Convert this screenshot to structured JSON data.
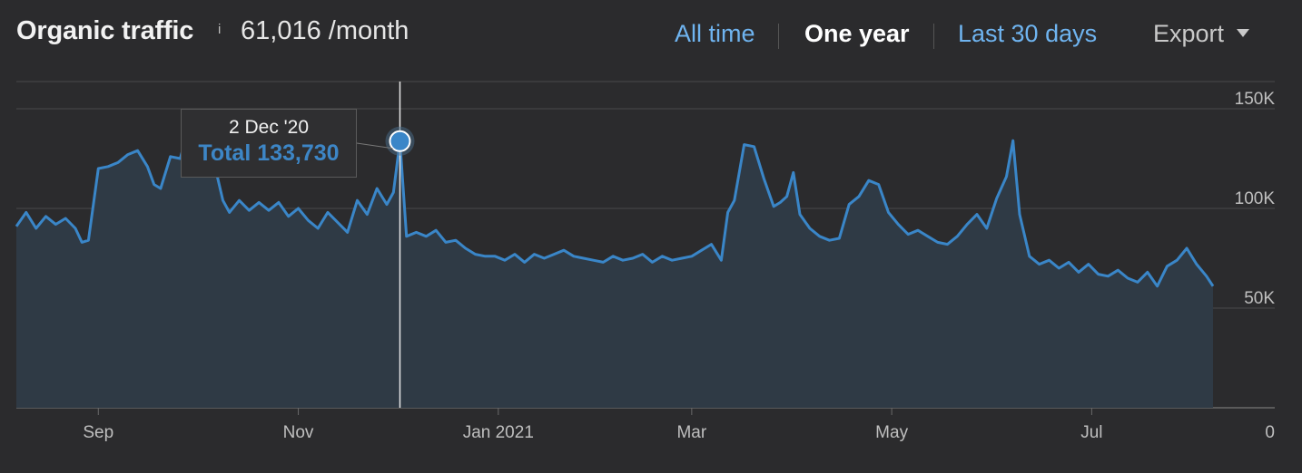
{
  "header": {
    "title": "Organic traffic",
    "info_icon": "i",
    "metric": "61,016 /month",
    "periods": [
      {
        "label": "All time",
        "active": false
      },
      {
        "label": "One year",
        "active": true
      },
      {
        "label": "Last 30 days",
        "active": false
      }
    ],
    "export_label": "Export"
  },
  "tooltip": {
    "date": "2 Dec '20",
    "value": "Total 133,730"
  },
  "colors": {
    "line": "#3a86c8",
    "area": "#2f3a45",
    "background": "#2b2b2d",
    "grid": "#4a4a4a",
    "link": "#6fb4f0"
  },
  "chart_data": {
    "type": "area",
    "title": "Organic traffic",
    "ylim": [
      0,
      150000
    ],
    "yticks": [
      {
        "value": 150000,
        "label": "150K"
      },
      {
        "value": 100000,
        "label": "100K"
      },
      {
        "value": 50000,
        "label": "50K"
      },
      {
        "value": 0,
        "label": "0"
      }
    ],
    "xticks": [
      {
        "date": "2020-09-01",
        "label": "Sep"
      },
      {
        "date": "2020-11-01",
        "label": "Nov"
      },
      {
        "date": "2021-01-01",
        "label": "Jan 2021"
      },
      {
        "date": "2021-03-01",
        "label": "Mar"
      },
      {
        "date": "2021-05-01",
        "label": "May"
      },
      {
        "date": "2021-07-01",
        "label": "Jul"
      }
    ],
    "x_range": [
      "2020-08-07",
      "2021-08-07"
    ],
    "highlight": {
      "date": "2020-12-02",
      "value": 133730
    },
    "series": [
      {
        "points": [
          [
            "2020-08-07",
            91000
          ],
          [
            "2020-08-10",
            98000
          ],
          [
            "2020-08-13",
            90000
          ],
          [
            "2020-08-16",
            96000
          ],
          [
            "2020-08-19",
            92000
          ],
          [
            "2020-08-22",
            95000
          ],
          [
            "2020-08-25",
            90000
          ],
          [
            "2020-08-27",
            83000
          ],
          [
            "2020-08-29",
            84000
          ],
          [
            "2020-09-01",
            120000
          ],
          [
            "2020-09-04",
            121000
          ],
          [
            "2020-09-07",
            123000
          ],
          [
            "2020-09-10",
            127000
          ],
          [
            "2020-09-13",
            129000
          ],
          [
            "2020-09-16",
            121000
          ],
          [
            "2020-09-18",
            112000
          ],
          [
            "2020-09-20",
            110000
          ],
          [
            "2020-09-23",
            126000
          ],
          [
            "2020-09-26",
            125000
          ],
          [
            "2020-09-29",
            143000
          ],
          [
            "2020-10-02",
            138000
          ],
          [
            "2020-10-05",
            122000
          ],
          [
            "2020-10-07",
            118000
          ],
          [
            "2020-10-09",
            104000
          ],
          [
            "2020-10-11",
            98000
          ],
          [
            "2020-10-14",
            104000
          ],
          [
            "2020-10-17",
            99000
          ],
          [
            "2020-10-20",
            103000
          ],
          [
            "2020-10-23",
            99000
          ],
          [
            "2020-10-26",
            103000
          ],
          [
            "2020-10-29",
            96000
          ],
          [
            "2020-11-01",
            100000
          ],
          [
            "2020-11-04",
            94000
          ],
          [
            "2020-11-07",
            90000
          ],
          [
            "2020-11-10",
            98000
          ],
          [
            "2020-11-13",
            93000
          ],
          [
            "2020-11-16",
            88000
          ],
          [
            "2020-11-19",
            104000
          ],
          [
            "2020-11-22",
            97000
          ],
          [
            "2020-11-25",
            110000
          ],
          [
            "2020-11-28",
            102000
          ],
          [
            "2020-11-30",
            108000
          ],
          [
            "2020-12-02",
            133730
          ],
          [
            "2020-12-04",
            86000
          ],
          [
            "2020-12-07",
            88000
          ],
          [
            "2020-12-10",
            86000
          ],
          [
            "2020-12-13",
            89000
          ],
          [
            "2020-12-16",
            83000
          ],
          [
            "2020-12-19",
            84000
          ],
          [
            "2020-12-22",
            80000
          ],
          [
            "2020-12-25",
            77000
          ],
          [
            "2020-12-28",
            76000
          ],
          [
            "2020-12-31",
            76000
          ],
          [
            "2021-01-03",
            74000
          ],
          [
            "2021-01-06",
            77000
          ],
          [
            "2021-01-09",
            73000
          ],
          [
            "2021-01-12",
            77000
          ],
          [
            "2021-01-15",
            75000
          ],
          [
            "2021-01-18",
            77000
          ],
          [
            "2021-01-21",
            79000
          ],
          [
            "2021-01-24",
            76000
          ],
          [
            "2021-01-27",
            75000
          ],
          [
            "2021-01-30",
            74000
          ],
          [
            "2021-02-02",
            73000
          ],
          [
            "2021-02-05",
            76000
          ],
          [
            "2021-02-08",
            74000
          ],
          [
            "2021-02-11",
            75000
          ],
          [
            "2021-02-14",
            77000
          ],
          [
            "2021-02-17",
            73000
          ],
          [
            "2021-02-20",
            76000
          ],
          [
            "2021-02-23",
            74000
          ],
          [
            "2021-02-26",
            75000
          ],
          [
            "2021-03-01",
            76000
          ],
          [
            "2021-03-04",
            79000
          ],
          [
            "2021-03-07",
            82000
          ],
          [
            "2021-03-10",
            74000
          ],
          [
            "2021-03-12",
            98000
          ],
          [
            "2021-03-14",
            104000
          ],
          [
            "2021-03-17",
            132000
          ],
          [
            "2021-03-20",
            131000
          ],
          [
            "2021-03-23",
            115000
          ],
          [
            "2021-03-26",
            101000
          ],
          [
            "2021-03-28",
            103000
          ],
          [
            "2021-03-30",
            106000
          ],
          [
            "2021-04-01",
            118000
          ],
          [
            "2021-04-03",
            97000
          ],
          [
            "2021-04-06",
            90000
          ],
          [
            "2021-04-09",
            86000
          ],
          [
            "2021-04-12",
            84000
          ],
          [
            "2021-04-15",
            85000
          ],
          [
            "2021-04-18",
            102000
          ],
          [
            "2021-04-21",
            106000
          ],
          [
            "2021-04-24",
            114000
          ],
          [
            "2021-04-27",
            112000
          ],
          [
            "2021-04-30",
            98000
          ],
          [
            "2021-05-03",
            92000
          ],
          [
            "2021-05-06",
            87000
          ],
          [
            "2021-05-09",
            89000
          ],
          [
            "2021-05-12",
            86000
          ],
          [
            "2021-05-15",
            83000
          ],
          [
            "2021-05-18",
            82000
          ],
          [
            "2021-05-21",
            86000
          ],
          [
            "2021-05-24",
            92000
          ],
          [
            "2021-05-27",
            97000
          ],
          [
            "2021-05-30",
            90000
          ],
          [
            "2021-06-02",
            105000
          ],
          [
            "2021-06-05",
            116000
          ],
          [
            "2021-06-07",
            134000
          ],
          [
            "2021-06-09",
            97000
          ],
          [
            "2021-06-12",
            76000
          ],
          [
            "2021-06-15",
            72000
          ],
          [
            "2021-06-18",
            74000
          ],
          [
            "2021-06-21",
            70000
          ],
          [
            "2021-06-24",
            73000
          ],
          [
            "2021-06-27",
            68000
          ],
          [
            "2021-06-30",
            72000
          ],
          [
            "2021-07-03",
            67000
          ],
          [
            "2021-07-06",
            66000
          ],
          [
            "2021-07-09",
            69000
          ],
          [
            "2021-07-12",
            65000
          ],
          [
            "2021-07-15",
            63000
          ],
          [
            "2021-07-18",
            68000
          ],
          [
            "2021-07-21",
            61000
          ],
          [
            "2021-07-24",
            71000
          ],
          [
            "2021-07-27",
            74000
          ],
          [
            "2021-07-30",
            80000
          ],
          [
            "2021-08-02",
            72000
          ],
          [
            "2021-08-05",
            66000
          ],
          [
            "2021-08-07",
            61000
          ]
        ]
      }
    ]
  }
}
